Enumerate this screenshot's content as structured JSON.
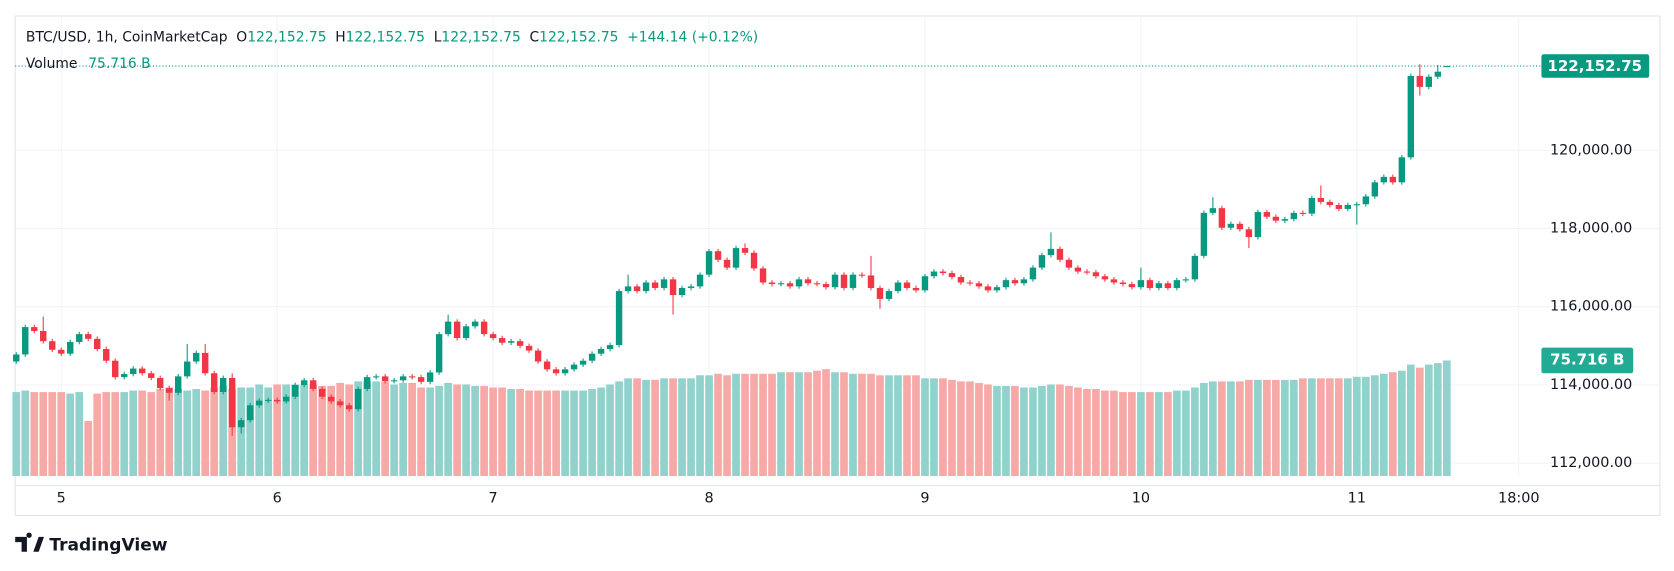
{
  "header": {
    "symbol": "BTC/USD, 1h, CoinMarketCap",
    "ohlc": [
      {
        "label": "O",
        "value": "122,152.75"
      },
      {
        "label": "H",
        "value": "122,152.75"
      },
      {
        "label": "L",
        "value": "122,152.75"
      },
      {
        "label": "C",
        "value": "122,152.75"
      }
    ],
    "change": "+144.14 (+0.12%)",
    "volume_label": "Volume",
    "volume_value": "75.716 B"
  },
  "chart_data": {
    "type": "candlestick",
    "open": [
      114600,
      114780,
      115480,
      115380,
      115120,
      114900,
      114800,
      115100,
      115300,
      115180,
      114920,
      114620,
      114200,
      114280,
      114420,
      114300,
      114180,
      113920,
      113800,
      114220,
      114600,
      114820,
      114300,
      113820,
      114180,
      112920,
      113100,
      113480,
      113600,
      113620,
      113580,
      113700,
      114000,
      114120,
      113900,
      113700,
      113580,
      113480,
      113380,
      113900,
      114200,
      114220,
      114100,
      114120,
      114220,
      114200,
      114080,
      114320,
      115300,
      115620,
      115200,
      115500,
      115620,
      115300,
      115200,
      115080,
      115120,
      115000,
      114880,
      114600,
      114400,
      114300,
      114400,
      114520,
      114620,
      114800,
      114920,
      115020,
      116400,
      116520,
      116400,
      116620,
      116480,
      116700,
      116300,
      116480,
      116520,
      116820,
      117420,
      117200,
      117000,
      117500,
      117380,
      116980,
      116620,
      116580,
      116600,
      116520,
      116700,
      116600,
      116580,
      116500,
      116820,
      116480,
      116820,
      116800,
      116480,
      116200,
      116400,
      116620,
      116480,
      116420,
      116780,
      116900,
      116860,
      116760,
      116620,
      116600,
      116520,
      116420,
      116500,
      116680,
      116600,
      116700,
      117000,
      117320,
      117480,
      117200,
      117000,
      116900,
      116880,
      116780,
      116700,
      116620,
      116580,
      116500,
      116680,
      116480,
      116600,
      116480,
      116680,
      116700,
      117300,
      118400,
      118520,
      118020,
      118120,
      117980,
      117780,
      118420,
      118300,
      118200,
      118240,
      118400,
      118380,
      118780,
      118680,
      118600,
      118500,
      118600,
      118620,
      118820,
      119180,
      119320,
      119180,
      119820,
      121900,
      121620,
      121880,
      122152.75
    ],
    "high": [
      114840,
      115540,
      115540,
      115750,
      115180,
      114960,
      115160,
      115360,
      115360,
      115240,
      114980,
      114680,
      114340,
      114480,
      114480,
      114360,
      114240,
      113980,
      114280,
      115050,
      114880,
      115050,
      114360,
      114240,
      114300,
      113160,
      113540,
      113660,
      113680,
      113680,
      113760,
      114060,
      114180,
      114180,
      113960,
      113760,
      113640,
      113540,
      113960,
      114260,
      114280,
      114280,
      114180,
      114280,
      114280,
      114260,
      114380,
      115360,
      115800,
      115680,
      115560,
      115680,
      115680,
      115360,
      115260,
      115180,
      115180,
      115060,
      114940,
      114660,
      114460,
      114460,
      114580,
      114680,
      114860,
      114980,
      115080,
      116460,
      116820,
      116580,
      116680,
      116680,
      116760,
      116760,
      116540,
      116580,
      116880,
      117480,
      117480,
      117260,
      117560,
      117620,
      117440,
      117040,
      116680,
      116660,
      116660,
      116760,
      116760,
      116660,
      116640,
      116880,
      116880,
      116880,
      116880,
      117300,
      116540,
      116460,
      116680,
      116680,
      116540,
      116840,
      116960,
      116960,
      116920,
      116820,
      116680,
      116660,
      116580,
      116560,
      116740,
      116740,
      116760,
      117060,
      117380,
      117900,
      117540,
      117260,
      117060,
      116960,
      116940,
      116840,
      116760,
      116680,
      116640,
      117000,
      116740,
      116660,
      116660,
      116740,
      116760,
      117360,
      118460,
      118800,
      118580,
      118180,
      118180,
      118040,
      118480,
      118480,
      118360,
      118300,
      118460,
      118460,
      118840,
      119100,
      118740,
      118660,
      118660,
      118680,
      118880,
      119240,
      119380,
      119380,
      119880,
      121960,
      122200,
      121940,
      122180,
      122152.75
    ],
    "low": [
      114540,
      114720,
      115320,
      115060,
      114840,
      114740,
      114740,
      115040,
      115120,
      114860,
      114560,
      114140,
      114140,
      114220,
      114240,
      114120,
      113860,
      113600,
      113740,
      114160,
      114540,
      114240,
      113760,
      113760,
      112700,
      112760,
      113040,
      113420,
      113540,
      113520,
      113520,
      113640,
      113940,
      113840,
      113640,
      113520,
      113420,
      113320,
      113320,
      113840,
      114140,
      114040,
      114040,
      114060,
      114140,
      114020,
      114020,
      114260,
      115240,
      115140,
      115140,
      115440,
      115240,
      115140,
      115020,
      115020,
      114940,
      114820,
      114540,
      114340,
      114240,
      114240,
      114340,
      114460,
      114560,
      114740,
      114860,
      114960,
      116340,
      116340,
      116340,
      116420,
      116420,
      115800,
      116240,
      116420,
      116460,
      116760,
      117140,
      116940,
      116940,
      117320,
      116920,
      116560,
      116520,
      116520,
      116460,
      116460,
      116540,
      116520,
      116440,
      116440,
      116420,
      116420,
      116740,
      116420,
      115950,
      116140,
      116340,
      116420,
      116360,
      116360,
      116720,
      116800,
      116700,
      116560,
      116540,
      116460,
      116360,
      116360,
      116440,
      116540,
      116540,
      116640,
      116940,
      117260,
      117140,
      116940,
      116840,
      116820,
      116720,
      116640,
      116560,
      116520,
      116440,
      116440,
      116420,
      116420,
      116420,
      116420,
      116620,
      116640,
      117240,
      118340,
      117960,
      117960,
      117920,
      117500,
      117720,
      118240,
      118140,
      118140,
      118180,
      118320,
      118320,
      118620,
      118540,
      118440,
      118440,
      118100,
      118560,
      118760,
      119120,
      119120,
      119120,
      119760,
      121400,
      121560,
      121820,
      122152.75
    ],
    "close": [
      114780,
      115480,
      115380,
      115120,
      114900,
      114800,
      115100,
      115300,
      115180,
      114920,
      114620,
      114200,
      114280,
      114420,
      114300,
      114180,
      113920,
      113800,
      114220,
      114600,
      114820,
      114300,
      113820,
      114180,
      112920,
      113100,
      113480,
      113600,
      113620,
      113580,
      113700,
      114000,
      114120,
      113900,
      113700,
      113580,
      113480,
      113380,
      113900,
      114200,
      114220,
      114100,
      114120,
      114220,
      114200,
      114080,
      114320,
      115300,
      115620,
      115200,
      115500,
      115620,
      115300,
      115200,
      115080,
      115120,
      115000,
      114880,
      114600,
      114400,
      114300,
      114400,
      114520,
      114620,
      114800,
      114920,
      115020,
      116400,
      116520,
      116400,
      116620,
      116480,
      116700,
      116300,
      116480,
      116520,
      116820,
      117420,
      117200,
      117000,
      117500,
      117380,
      116980,
      116620,
      116580,
      116600,
      116520,
      116700,
      116600,
      116580,
      116500,
      116820,
      116480,
      116820,
      116800,
      116480,
      116200,
      116400,
      116620,
      116480,
      116420,
      116780,
      116900,
      116860,
      116760,
      116620,
      116600,
      116520,
      116420,
      116500,
      116680,
      116600,
      116700,
      117000,
      117320,
      117480,
      117200,
      117000,
      116900,
      116880,
      116780,
      116700,
      116620,
      116580,
      116500,
      116680,
      116480,
      116600,
      116480,
      116680,
      116700,
      117300,
      118400,
      118520,
      118020,
      118120,
      117980,
      117780,
      118420,
      118300,
      118200,
      118240,
      118400,
      118380,
      118780,
      118680,
      118600,
      118500,
      118600,
      118620,
      118820,
      119180,
      119320,
      119180,
      119820,
      121900,
      121620,
      121880,
      122008.61,
      122152.75
    ],
    "volume": [
      55,
      56,
      55,
      55,
      55,
      55,
      54,
      55,
      36,
      54,
      55,
      55,
      55,
      56,
      56,
      55,
      57,
      58,
      57,
      56,
      57,
      56,
      58,
      59,
      57,
      58,
      58,
      60,
      58,
      60,
      60,
      60,
      60,
      60,
      59,
      59,
      61,
      60,
      62,
      62,
      62,
      62,
      60,
      61,
      61,
      58,
      58,
      59,
      61,
      60,
      60,
      59,
      59,
      58,
      58,
      57,
      57,
      56,
      56,
      56,
      56,
      56,
      56,
      56,
      57,
      58,
      60,
      62,
      64,
      64,
      63,
      63,
      64,
      64,
      64,
      64,
      66,
      66,
      67,
      66,
      67,
      67,
      67,
      67,
      67,
      68,
      68,
      68,
      68,
      69,
      70,
      68,
      68,
      67,
      67,
      67,
      66,
      66,
      66,
      66,
      66,
      64,
      64,
      64,
      63,
      62,
      62,
      61,
      60,
      59,
      59,
      59,
      58,
      58,
      59,
      60,
      60,
      59,
      58,
      57,
      57,
      56,
      56,
      55,
      55,
      55,
      55,
      55,
      55,
      56,
      56,
      58,
      61,
      62,
      62,
      62,
      62,
      63,
      63,
      63,
      63,
      63,
      63,
      64,
      64,
      64,
      64,
      64,
      64,
      65,
      65,
      66,
      67,
      68,
      69,
      73,
      71,
      73,
      74,
      75.716
    ],
    "up_color": "#089981",
    "down_color": "#f23645",
    "volume_up_color": "#92d2cc",
    "volume_down_color": "#f7a9a7",
    "ylim": [
      111673,
      123432
    ],
    "yticks": [
      {
        "value": 112000,
        "label": "112,000.00"
      },
      {
        "value": 114000,
        "label": "114,000.00"
      },
      {
        "value": 116000,
        "label": "116,000.00"
      },
      {
        "value": 118000,
        "label": "118,000.00"
      },
      {
        "value": 120000,
        "label": "120,000.00"
      }
    ],
    "xticks": [
      "5",
      "6",
      "7",
      "8",
      "9",
      "10",
      "11",
      "18:00"
    ],
    "last_price": {
      "value": 122152.75,
      "label": "122,152.75"
    },
    "last_volume_label": "75.716 B",
    "grid": true
  },
  "footer": {
    "brand": "TradingView"
  }
}
